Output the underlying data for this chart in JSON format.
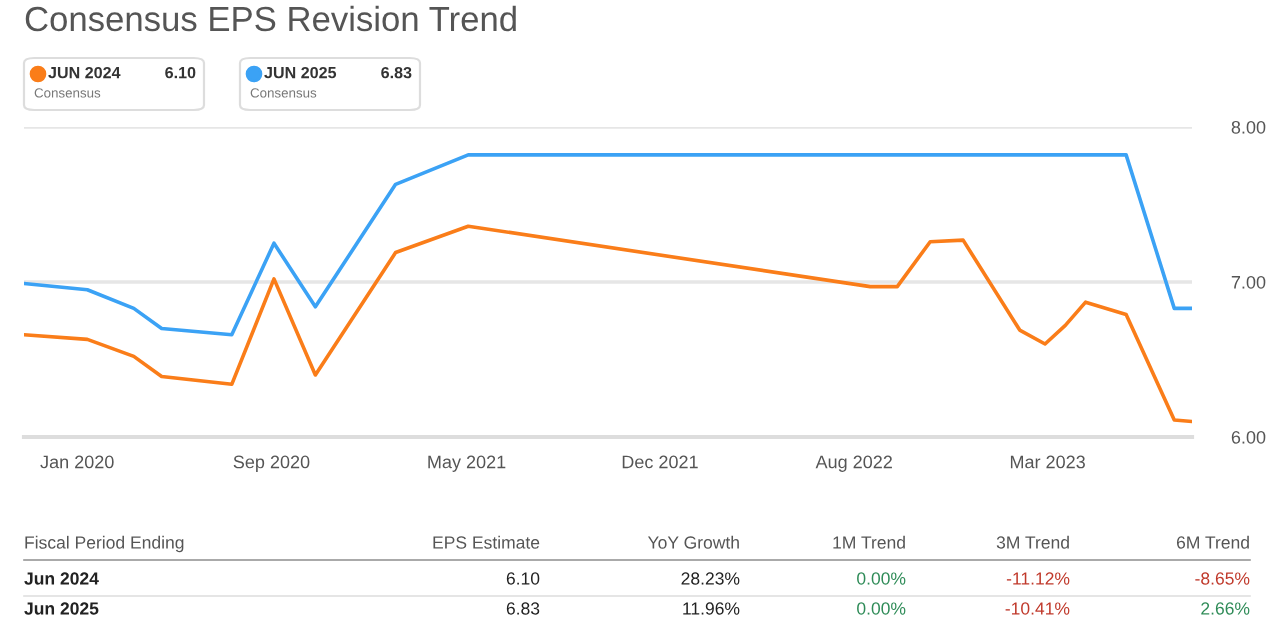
{
  "chart_data": {
    "type": "line",
    "title": "Consensus EPS Revision Trend",
    "legend": "top left",
    "grid": "y",
    "x": [
      "2019-11-28",
      "2020-02-11",
      "2020-04-06",
      "2020-05-09",
      "2020-07-31",
      "2020-09-19",
      "2020-11-07",
      "2021-02-10",
      "2021-05-07",
      "2022-08-26",
      "2022-09-27",
      "2022-11-05",
      "2022-12-14",
      "2023-02-19",
      "2023-03-21",
      "2023-04-14",
      "2023-05-08",
      "2023-06-25",
      "2023-08-21",
      "2023-09-11"
    ],
    "series": [
      {
        "name": "JUN 2024",
        "color": "#fa7d19",
        "values": [
          6.66,
          6.63,
          6.52,
          6.39,
          6.34,
          7.02,
          6.4,
          7.19,
          7.36,
          6.97,
          6.97,
          7.26,
          7.27,
          6.69,
          6.6,
          6.72,
          6.87,
          6.79,
          6.11,
          6.1
        ]
      },
      {
        "name": "JUN 2025",
        "color": "#3ba2f5",
        "values": [
          6.99,
          6.95,
          6.83,
          6.7,
          6.66,
          7.25,
          6.84,
          7.63,
          7.82,
          7.82,
          7.82,
          7.82,
          7.82,
          7.82,
          7.82,
          7.82,
          7.82,
          7.82,
          6.83,
          6.83
        ]
      }
    ],
    "xlim": [
      "2019-11-28",
      "2023-09-11"
    ],
    "xticks": [
      {
        "value": "2020-01-30",
        "label": "Jan 2020"
      },
      {
        "value": "2020-09-16",
        "label": "Sep 2020"
      },
      {
        "value": "2021-05-05",
        "label": "May 2021"
      },
      {
        "value": "2021-12-20",
        "label": "Dec 2021"
      },
      {
        "value": "2022-08-07",
        "label": "Aug 2022"
      },
      {
        "value": "2023-03-24",
        "label": "Mar 2023"
      }
    ],
    "ylim": [
      6,
      8
    ],
    "yticks": [
      {
        "value": 6,
        "label": "6.00"
      },
      {
        "value": 7,
        "label": "7.00"
      },
      {
        "value": 8,
        "label": "8.00"
      }
    ],
    "annotations": [
      "6.10",
      "Consensus",
      "6.83",
      "Consensus",
      "Fiscal Period Ending",
      "EPS Estimate",
      "YoY Growth",
      "1M Trend",
      "3M Trend",
      "6M Trend",
      "Jun 2024",
      "6.10",
      "28.23%",
      "0.00%",
      "-11.12%",
      "-8.65%",
      "Jun 2025",
      "6.83",
      "11.96%",
      "0.00%",
      "-10.41%",
      "2.66%"
    ]
  }
}
